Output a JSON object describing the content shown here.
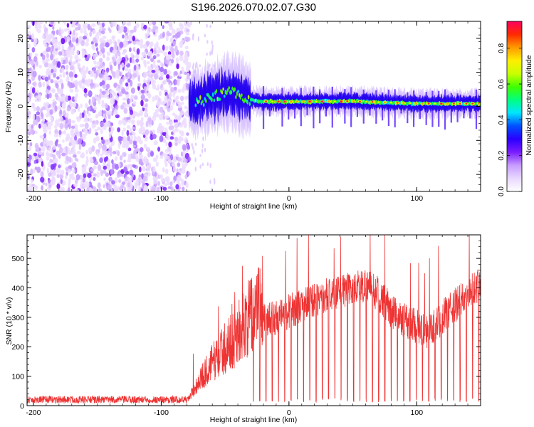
{
  "chart_data": [
    {
      "type": "heatmap",
      "title": "S196.2026.070.02.07.G30",
      "xlabel": "Height of straight line (km)",
      "ylabel": "Frequency (Hz)",
      "xlim": [
        -205,
        150
      ],
      "ylim": [
        -25,
        25
      ],
      "x_ticks": [
        -200,
        -100,
        0,
        100
      ],
      "y_ticks": [
        -20,
        -10,
        0,
        10,
        20
      ],
      "colorbar": {
        "label": "Normalized spectral amplitude",
        "range": [
          0.0,
          0.95
        ],
        "ticks": [
          0.0,
          0.2,
          0.4,
          0.6,
          0.8
        ],
        "colors": [
          "#ffffff",
          "#e8d8ff",
          "#c79cff",
          "#7a1cff",
          "#2a00ff",
          "#0050ff",
          "#00e5ff",
          "#00ff80",
          "#40ff00",
          "#c8ff00",
          "#ffee00",
          "#ff9a00",
          "#ff2a00",
          "#ff0060"
        ]
      },
      "noise_region": [
        -205,
        -78
      ],
      "signal_track": [
        {
          "x": -78,
          "f": 1.0
        },
        {
          "x": -70,
          "f": 1.5
        },
        {
          "x": -60,
          "f": 2.5
        },
        {
          "x": -50,
          "f": 4.2
        },
        {
          "x": -42,
          "f": 4.0
        },
        {
          "x": -35,
          "f": 2.5
        },
        {
          "x": -25,
          "f": 1.5
        },
        {
          "x": -10,
          "f": 1.4
        },
        {
          "x": 0,
          "f": 1.4
        },
        {
          "x": 50,
          "f": 1.5
        },
        {
          "x": 100,
          "f": 0.8
        },
        {
          "x": 150,
          "f": 0.8
        }
      ]
    },
    {
      "type": "line",
      "xlabel": "Height of straight line (km)",
      "ylabel": "SNR (10 * v/v)",
      "xlim": [
        -205,
        150
      ],
      "ylim": [
        0,
        580
      ],
      "x_ticks": [
        -200,
        -100,
        0,
        100
      ],
      "y_ticks": [
        0,
        100,
        200,
        300,
        400,
        500
      ],
      "color": "#ee3333",
      "envelope": [
        {
          "x": -205,
          "y": 25
        },
        {
          "x": -78,
          "y": 25
        },
        {
          "x": -70,
          "y": 70
        },
        {
          "x": -60,
          "y": 120
        },
        {
          "x": -50,
          "y": 160
        },
        {
          "x": -40,
          "y": 200
        },
        {
          "x": -30,
          "y": 250
        },
        {
          "x": -20,
          "y": 300
        },
        {
          "x": -10,
          "y": 300
        },
        {
          "x": 0,
          "y": 320
        },
        {
          "x": 10,
          "y": 340
        },
        {
          "x": 20,
          "y": 360
        },
        {
          "x": 40,
          "y": 390
        },
        {
          "x": 60,
          "y": 410
        },
        {
          "x": 70,
          "y": 380
        },
        {
          "x": 80,
          "y": 320
        },
        {
          "x": 90,
          "y": 290
        },
        {
          "x": 100,
          "y": 270
        },
        {
          "x": 110,
          "y": 250
        },
        {
          "x": 120,
          "y": 300
        },
        {
          "x": 130,
          "y": 340
        },
        {
          "x": 140,
          "y": 380
        },
        {
          "x": 150,
          "y": 420
        }
      ],
      "dropout_interval_km": 4.9,
      "dropout_start_km": -28
    }
  ]
}
